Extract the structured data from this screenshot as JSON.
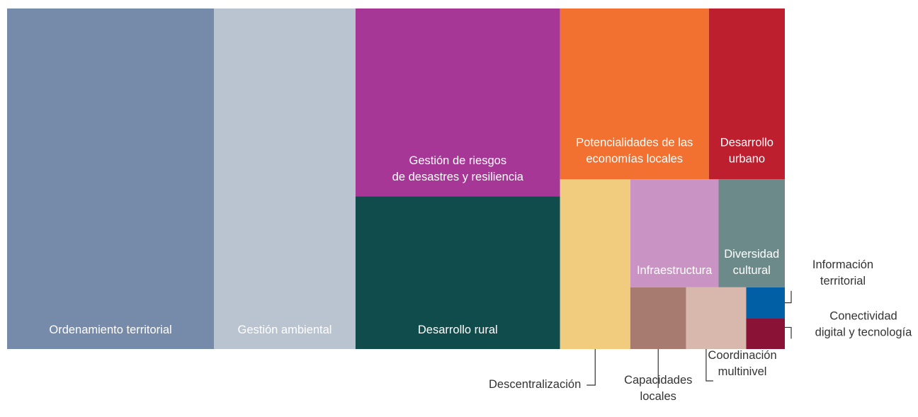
{
  "chart_data": {
    "type": "treemap",
    "categories": [
      "Ordenamiento territorial",
      "Gestión ambiental",
      "Gestión de riesgos de desastres y resiliencia",
      "Desarrollo rural",
      "Potencialidades de las economías locales",
      "Desarrollo urbano",
      "Descentralización",
      "Infraestructura",
      "Diversidad cultural",
      "Capacidades locales",
      "Coordinación multinivel",
      "Información territorial",
      "Conectividad digital y tecnología"
    ],
    "values": [
      26.6,
      18.2,
      14.5,
      11.8,
      9.6,
      4.9,
      4.5,
      3.6,
      2.7,
      1.3,
      1.4,
      0.45,
      0.45
    ],
    "colors": [
      "#768ba9",
      "#b9c4d0",
      "#a63796",
      "#104c4c",
      "#f27030",
      "#bd1f2e",
      "#f1cb7e",
      "#c994c3",
      "#6d8a8a",
      "#a77b70",
      "#d8b8ad",
      "#015fa5",
      "#8a1236"
    ]
  }
}
